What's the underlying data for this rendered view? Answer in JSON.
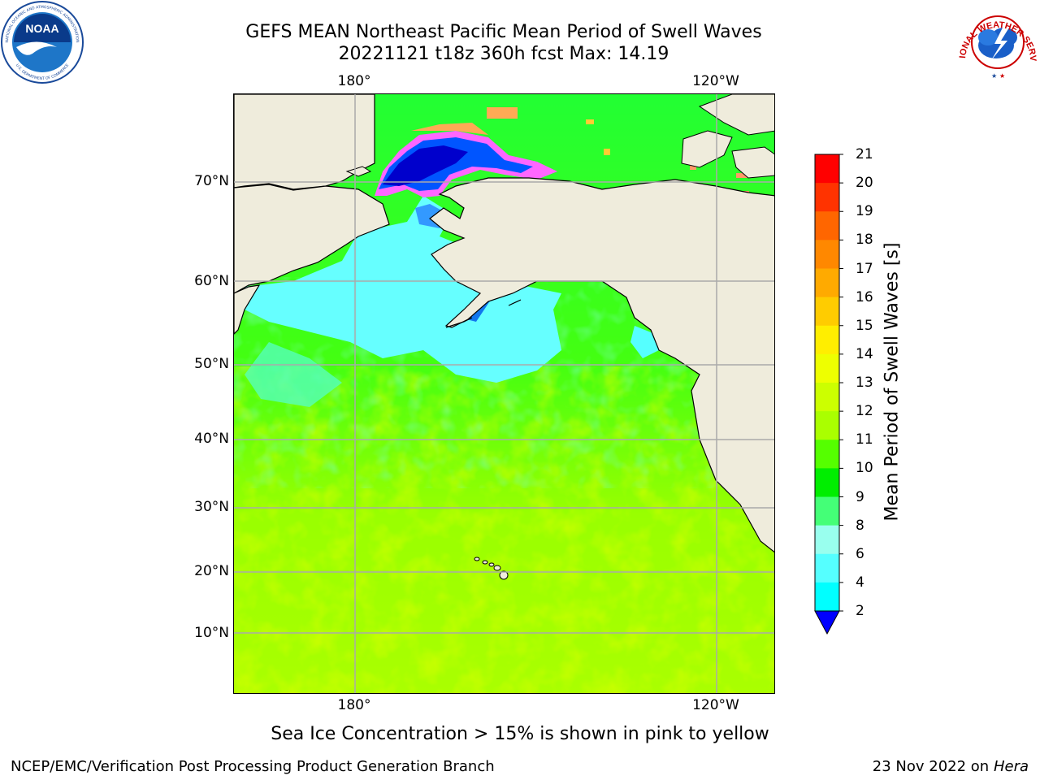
{
  "title": {
    "line1": "GEFS MEAN Northeast Pacific Mean Period of Swell Waves",
    "line2": "20221121 t18z 360h fcst   Max: 14.19"
  },
  "map": {
    "lon_ticks": [
      "180°",
      "120°W"
    ],
    "lat_ticks": [
      "70°N",
      "60°N",
      "50°N",
      "40°N",
      "30°N",
      "20°N",
      "10°N"
    ],
    "colors": {
      "land": "#efecdc",
      "ocean_low": "#00ff00",
      "ocean_mid": "#66ff00",
      "ocean_high": "#ccff00",
      "ice_cyan": "#55ffff",
      "ice_blue": "#0077ff",
      "ice_navy": "#0000ee",
      "ice_pink": "#ff55ff",
      "ice_orange": "#ffaa55",
      "gridline": "#aaaaaa",
      "coast": "#000000"
    }
  },
  "colorbar": {
    "title": "Mean Period of Swell Waves [s]",
    "levels": [
      "21",
      "20",
      "19",
      "18",
      "17",
      "16",
      "15",
      "14",
      "13",
      "12",
      "11",
      "10",
      "9",
      "8",
      "6",
      "4",
      "2"
    ],
    "colors": [
      "#ff0000",
      "#ff3300",
      "#ff6600",
      "#ff8800",
      "#ffaa00",
      "#ffcc00",
      "#ffee00",
      "#eeff00",
      "#ccff00",
      "#aaff00",
      "#55ff00",
      "#00ee00",
      "#44ff77",
      "#99ffee",
      "#55ffff",
      "#00ffff",
      "#0077ff"
    ],
    "extend_color": "#0000ff"
  },
  "footnote": "Sea Ice Concentration > 15% is shown in pink to yellow",
  "credit_left": "NCEP/EMC/Verification Post Processing Product Generation Branch",
  "credit_right_date": "23 Nov 2022 on",
  "credit_right_host": "Hera",
  "logos": {
    "noaa_text": "NOAA",
    "noaa_ring_top": "NATIONAL OCEANIC AND ATMOSPHERIC ADMINISTRATION",
    "noaa_ring_bottom": "U.S. DEPARTMENT OF COMMERCE",
    "nws_ring": "NATIONAL WEATHER SERVICE"
  }
}
